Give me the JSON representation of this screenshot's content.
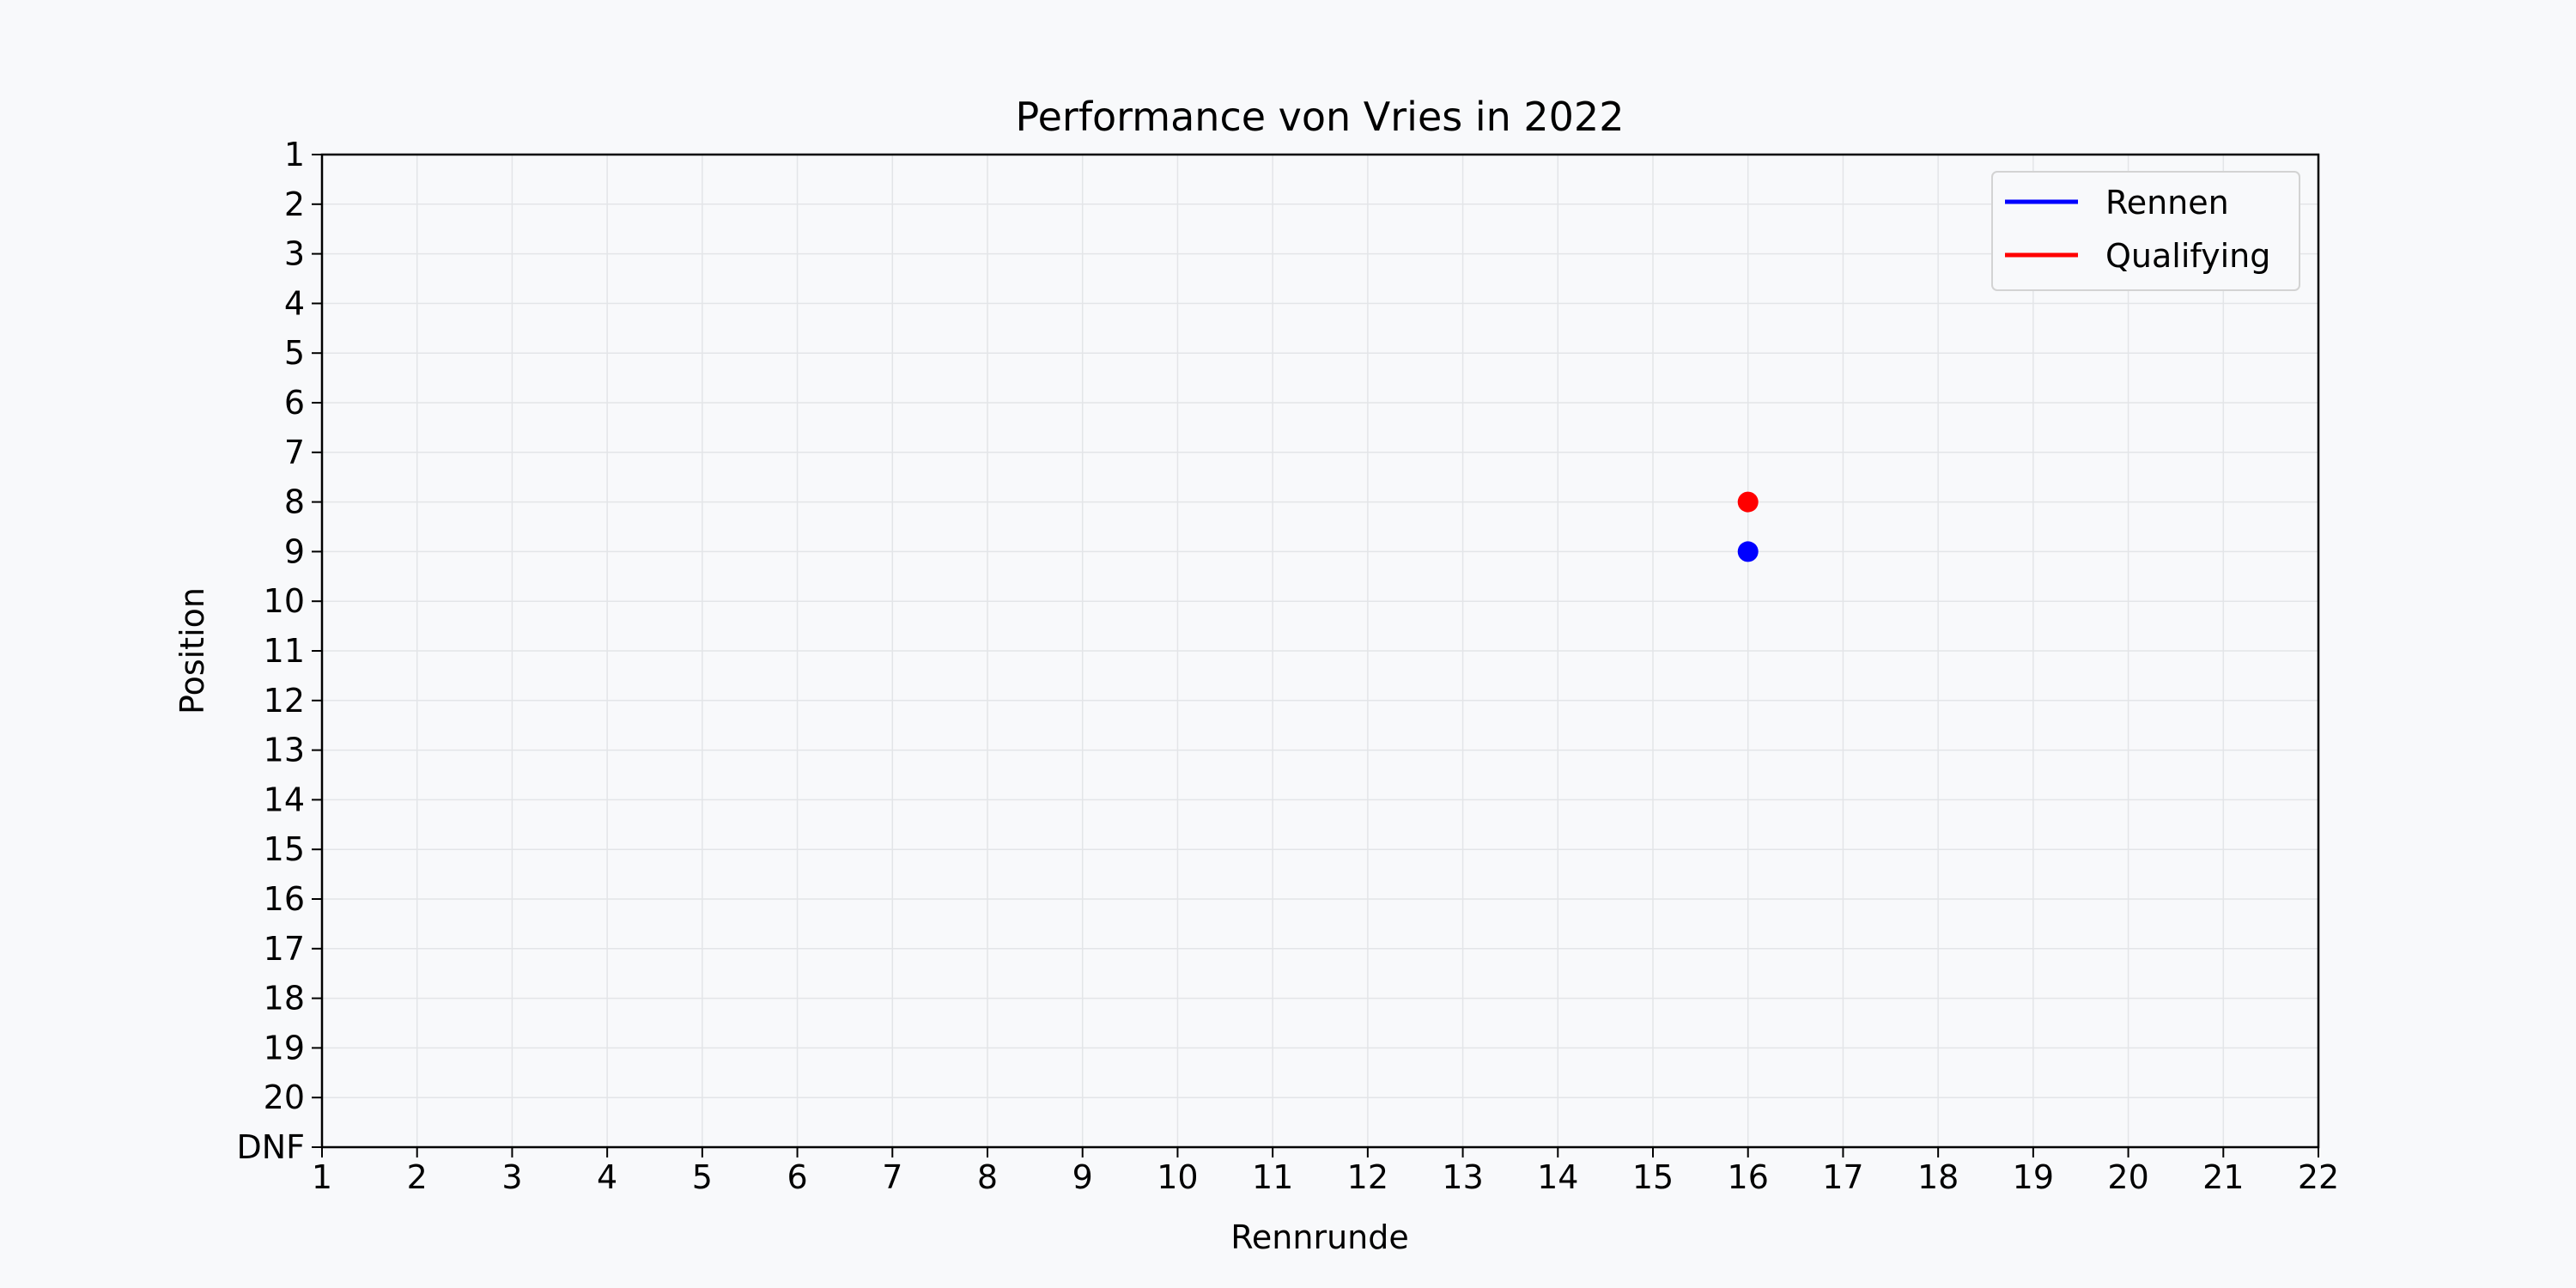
{
  "chart_data": {
    "type": "scatter",
    "title": "Performance von Vries in 2022",
    "xlabel": "Rennrunde",
    "ylabel": "Position",
    "xlim": [
      1,
      22
    ],
    "ylim": [
      1,
      21
    ],
    "y_inverted": true,
    "x_ticks": [
      "1",
      "2",
      "3",
      "4",
      "5",
      "6",
      "7",
      "8",
      "9",
      "10",
      "11",
      "12",
      "13",
      "14",
      "15",
      "16",
      "17",
      "18",
      "19",
      "20",
      "21",
      "22"
    ],
    "y_ticks": [
      "1",
      "2",
      "3",
      "4",
      "5",
      "6",
      "7",
      "8",
      "9",
      "10",
      "11",
      "12",
      "13",
      "14",
      "15",
      "16",
      "17",
      "18",
      "19",
      "20",
      "DNF"
    ],
    "grid": true,
    "legend_position": "top-right",
    "series": [
      {
        "name": "Rennen",
        "color": "#0000ff",
        "points": [
          {
            "x": 16,
            "y": 9
          }
        ]
      },
      {
        "name": "Qualifying",
        "color": "#ff0000",
        "points": [
          {
            "x": 16,
            "y": 8
          }
        ]
      }
    ]
  }
}
